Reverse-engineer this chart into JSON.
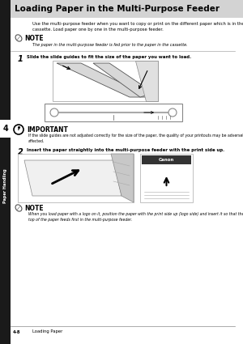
{
  "bg_color": "#ffffff",
  "header_bg": "#d3d3d3",
  "header_text": "Loading Paper in the Multi-Purpose Feeder",
  "body_text1": "Use the multi-purpose feeder when you want to copy or print on the different paper which is in the\ncassette. Load paper one by one in the multi-purpose feeder.",
  "note_label": "NOTE",
  "note_text1": "The paper in the multi-purpose feeder is fed prior to the paper in the cassette.",
  "step1_num": "1",
  "step1_text": "Slide the slide guides to fit the size of the paper you want to load.",
  "important_label": "IMPORTANT",
  "important_text": "If the slide guides are not adjusted correctly for the size of the paper, the quality of your printouts may be adversely\naffected.",
  "step2_num": "2",
  "step2_text": "Insert the paper straightly into the multi-purpose feeder with the print side up.",
  "note_label2": "NOTE",
  "note_text2": "When you load paper with a logo on it, position the paper with the print side up (logo side) and insert it so that the\ntop of the paper feeds first in the multi-purpose feeder.",
  "footer_left": "4-8",
  "footer_right": "Loading Paper",
  "tab_text": "Paper Handling",
  "tab_num": "4",
  "sidebar_color": "#1a1a1a",
  "canon_label": "Canon"
}
